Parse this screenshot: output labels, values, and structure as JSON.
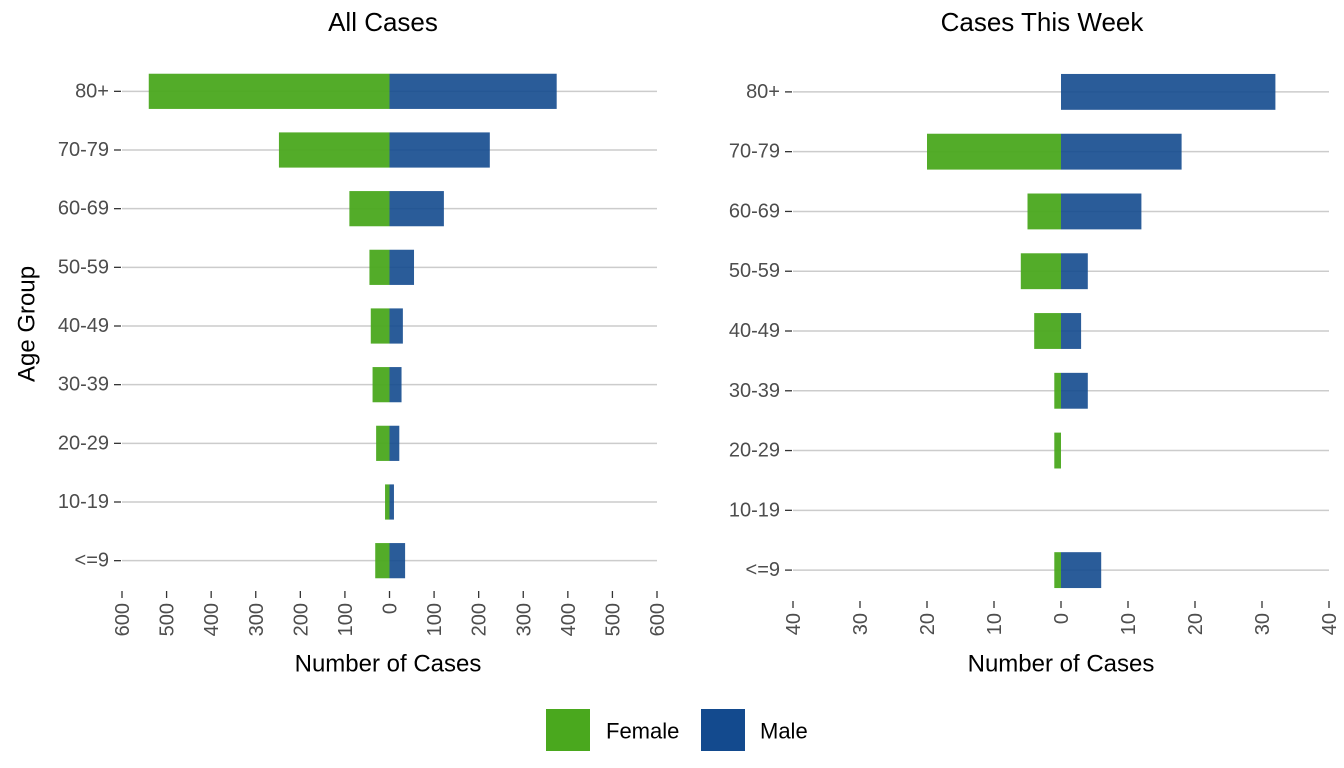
{
  "colors": {
    "female": "#4aa81e",
    "male": "#134a8e",
    "grid": "#cccccc"
  },
  "legend": [
    {
      "key": "female",
      "label": "Female"
    },
    {
      "key": "male",
      "label": "Male"
    }
  ],
  "chart_data": [
    {
      "type": "bar",
      "orientation": "horizontal-diverging",
      "title": "All Cases",
      "xlabel": "Number of Cases",
      "ylabel": "Age Group",
      "categories": [
        "80+",
        "70-79",
        "60-69",
        "50-59",
        "40-49",
        "30-39",
        "20-29",
        "10-19",
        "<=9"
      ],
      "series": [
        {
          "name": "Female",
          "values": [
            540,
            248,
            90,
            45,
            42,
            38,
            30,
            10,
            32
          ]
        },
        {
          "name": "Male",
          "values": [
            375,
            225,
            122,
            55,
            30,
            27,
            22,
            10,
            35
          ]
        }
      ],
      "xlim": [
        -600,
        600
      ],
      "xticks": [
        -600,
        -500,
        -400,
        -300,
        -200,
        -100,
        0,
        100,
        200,
        300,
        400,
        500,
        600
      ],
      "xtick_labels": [
        "600",
        "500",
        "400",
        "300",
        "200",
        "100",
        "0",
        "100",
        "200",
        "300",
        "400",
        "500",
        "600"
      ],
      "grid": true
    },
    {
      "type": "bar",
      "orientation": "horizontal-diverging",
      "title": "Cases This Week",
      "xlabel": "Number of Cases",
      "ylabel": "",
      "categories": [
        "80+",
        "70-79",
        "60-69",
        "50-59",
        "40-49",
        "30-39",
        "20-29",
        "10-19",
        "<=9"
      ],
      "series": [
        {
          "name": "Female",
          "values": [
            0,
            20,
            5,
            6,
            4,
            1,
            1,
            0,
            1
          ]
        },
        {
          "name": "Male",
          "values": [
            32,
            18,
            12,
            4,
            3,
            4,
            0,
            0,
            6
          ]
        }
      ],
      "xlim": [
        -40,
        40
      ],
      "xticks": [
        -40,
        -30,
        -20,
        -10,
        0,
        10,
        20,
        30,
        40
      ],
      "xtick_labels": [
        "40",
        "30",
        "20",
        "10",
        "0",
        "10",
        "20",
        "30",
        "40"
      ],
      "grid": true
    }
  ]
}
